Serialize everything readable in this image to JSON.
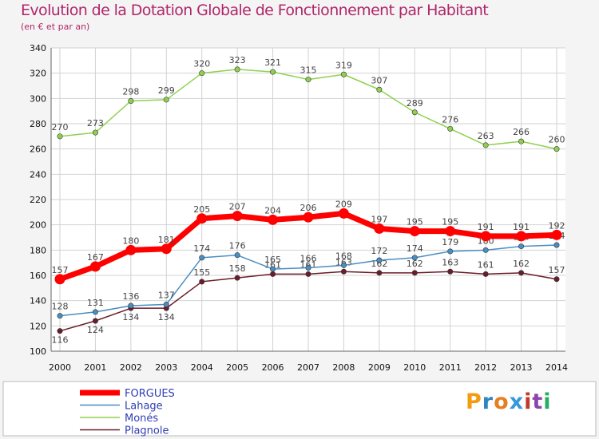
{
  "title": "Evolution de la Dotation Globale de Fonctionnement par Habitant",
  "subtitle": "(en € et par an)",
  "brand": {
    "letters": [
      "P",
      "r",
      "o",
      "x",
      "i",
      "t",
      "i"
    ],
    "colors": [
      "#f39c12",
      "#2e86c1",
      "#e67e22",
      "#3498db",
      "#c0392b",
      "#8e44ad",
      "#27ae60"
    ]
  },
  "chart_data": {
    "type": "line",
    "title": "Evolution de la Dotation Globale de Fonctionnement par Habitant",
    "subtitle": "(en € et par an)",
    "xlabel": "",
    "ylabel": "",
    "x": [
      "2000",
      "2001",
      "2002",
      "2003",
      "2004",
      "2005",
      "2006",
      "2007",
      "2008",
      "2009",
      "2010",
      "2011",
      "2012",
      "2013",
      "2014"
    ],
    "ylim": [
      100,
      340
    ],
    "yticks": [
      "100",
      "120",
      "140",
      "160",
      "180",
      "200",
      "220",
      "240",
      "260",
      "280",
      "300",
      "320",
      "340"
    ],
    "grid": true,
    "legend_position": "bottom-left",
    "series": [
      {
        "name": "Monés",
        "color": "#8fd14f",
        "values": [
          270,
          273,
          298,
          299,
          320,
          323,
          321,
          315,
          319,
          307,
          289,
          276,
          263,
          266,
          260
        ]
      },
      {
        "name": "Plagnole",
        "color": "#6b1c2a",
        "values": [
          116,
          124,
          134,
          134,
          155,
          158,
          161,
          161,
          163,
          162,
          162,
          163,
          161,
          162,
          157
        ]
      },
      {
        "name": "Lahage",
        "color": "#4a8ec2",
        "values": [
          128,
          131,
          136,
          137,
          174,
          176,
          165,
          166,
          168,
          172,
          174,
          179,
          180,
          183,
          184
        ]
      },
      {
        "name": "FORGUES",
        "color": "#ff0000",
        "values": [
          157,
          167,
          180,
          181,
          205,
          207,
          204,
          206,
          209,
          197,
          195,
          195,
          191,
          191,
          192
        ]
      }
    ],
    "legend": [
      "FORGUES",
      "Lahage",
      "Monés",
      "Plagnole"
    ]
  }
}
